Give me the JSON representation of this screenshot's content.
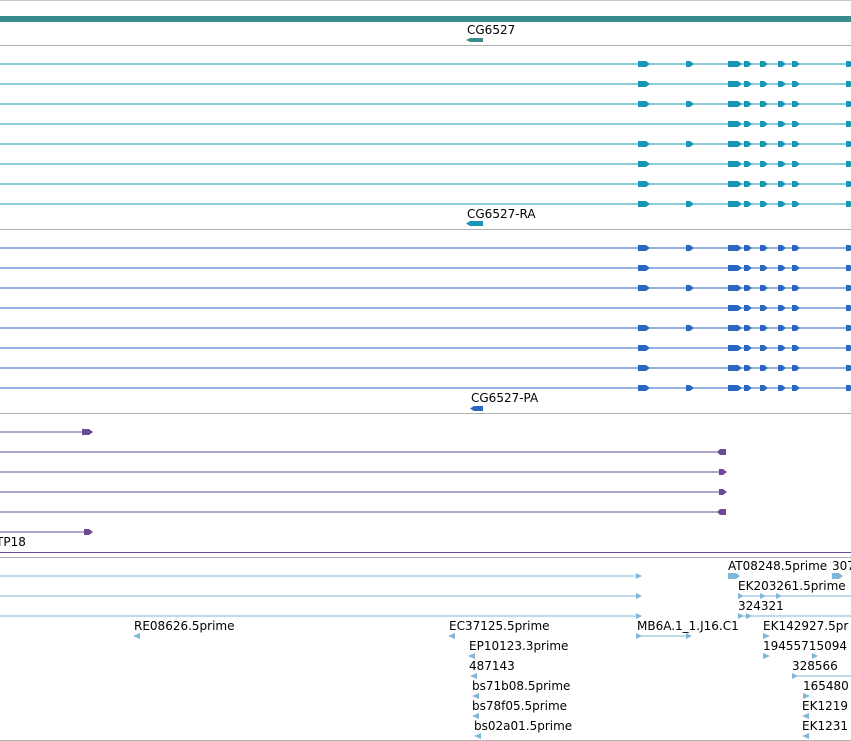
{
  "colors": {
    "gene": "#3a8c8c",
    "transcript": "#1797b5",
    "protein": "#2a67c0",
    "secondary": "#6a4b96",
    "est": "#80b6d6",
    "divider": "#b0b0b0"
  },
  "tracks": {
    "gene": {
      "label": "CG6527"
    },
    "transcripts": {
      "label": "CG6527-RA"
    },
    "proteins": {
      "label": "CG6527-PA"
    },
    "secondary": {
      "label": "TP18"
    },
    "est": {
      "labels": [
        "RE08626.5prime",
        "EC37125.5prime",
        "EP10123.3prime",
        "487143",
        "bs71b08.5prime",
        "bs78f05.5prime",
        "bs02a01.5prime",
        "MB6A.1_1.J16.C1",
        "AT08248.5prime",
        "307",
        "EK203261.5prime",
        "324321",
        "EK142927.5pr",
        "19455715094",
        "328566",
        "165480",
        "EK1219",
        "EK1231"
      ]
    }
  }
}
